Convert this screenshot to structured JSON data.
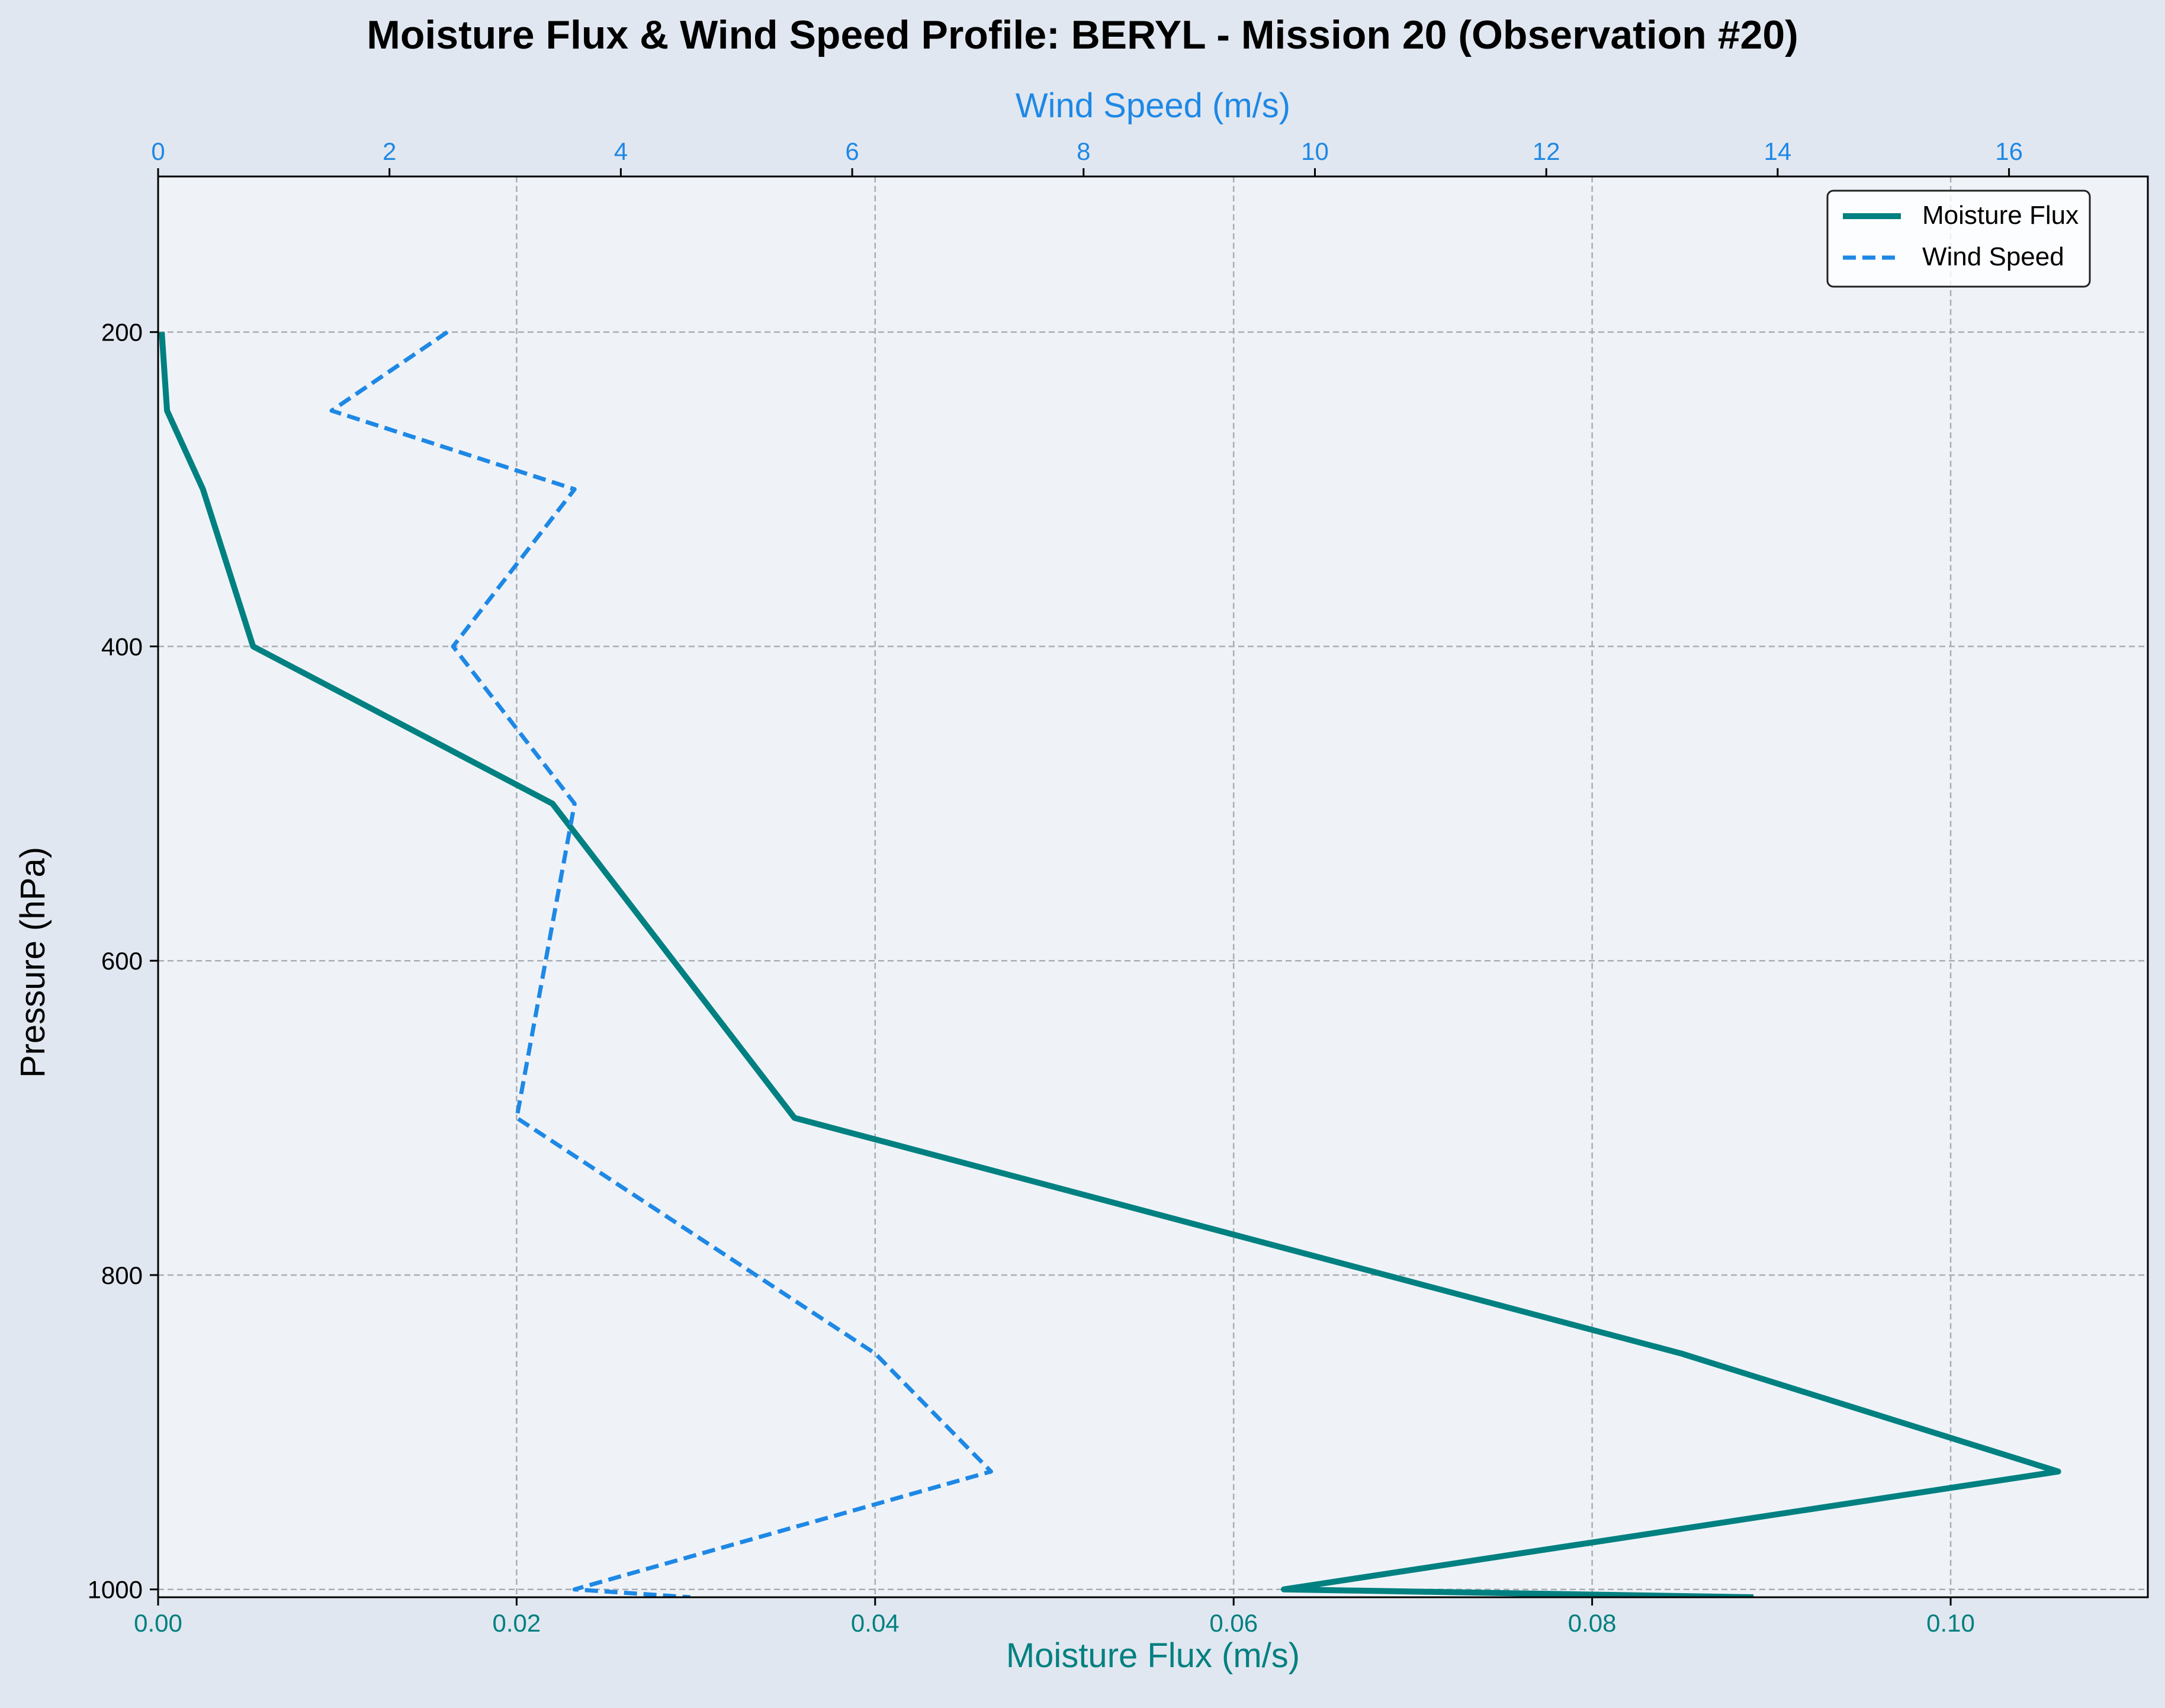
{
  "chart_data": {
    "type": "line",
    "title": "Moisture Flux & Wind Speed Profile: BERYL - Mission 20 (Observation #20)",
    "ylabel": "Pressure (hPa)",
    "xlabel_bottom": "Moisture Flux (m/s)",
    "xlabel_top": "Wind Speed (m/s)",
    "y_inverted": true,
    "ylim": [
      1005,
      101
    ],
    "xlim_bottom": [
      0,
      0.111
    ],
    "xlim_top": [
      0,
      17.2
    ],
    "y_ticks": [
      200,
      400,
      600,
      800,
      1000
    ],
    "x_ticks_bottom": [
      "0.00",
      "0.02",
      "0.04",
      "0.06",
      "0.08",
      "0.10"
    ],
    "x_ticks_top": [
      "0",
      "2",
      "4",
      "6",
      "8",
      "10",
      "12",
      "14",
      "16"
    ],
    "grid": true,
    "legend_position": "top-right",
    "colors": {
      "moisture_flux": "#008080",
      "wind_speed": "#1e88e5",
      "plot_bg": "#eff3f8",
      "figure_bg": "#e1e7f0",
      "grid": "#a8aeb4"
    },
    "series": [
      {
        "name": "Moisture Flux",
        "axis": "bottom",
        "style": "solid",
        "pressure": [
          200,
          250,
          300,
          400,
          500,
          700,
          850,
          925,
          1000,
          1005
        ],
        "values": [
          0.0002,
          0.0005,
          0.0025,
          0.0053,
          0.022,
          0.0355,
          0.085,
          0.106,
          0.0628,
          0.089
        ]
      },
      {
        "name": "Wind Speed",
        "axis": "top",
        "style": "dashed",
        "pressure": [
          200,
          250,
          300,
          400,
          500,
          700,
          850,
          925,
          1000,
          1005
        ],
        "values": [
          2.5,
          1.5,
          3.6,
          2.55,
          3.6,
          3.1,
          6.2,
          7.2,
          3.6,
          4.6
        ]
      }
    ]
  }
}
